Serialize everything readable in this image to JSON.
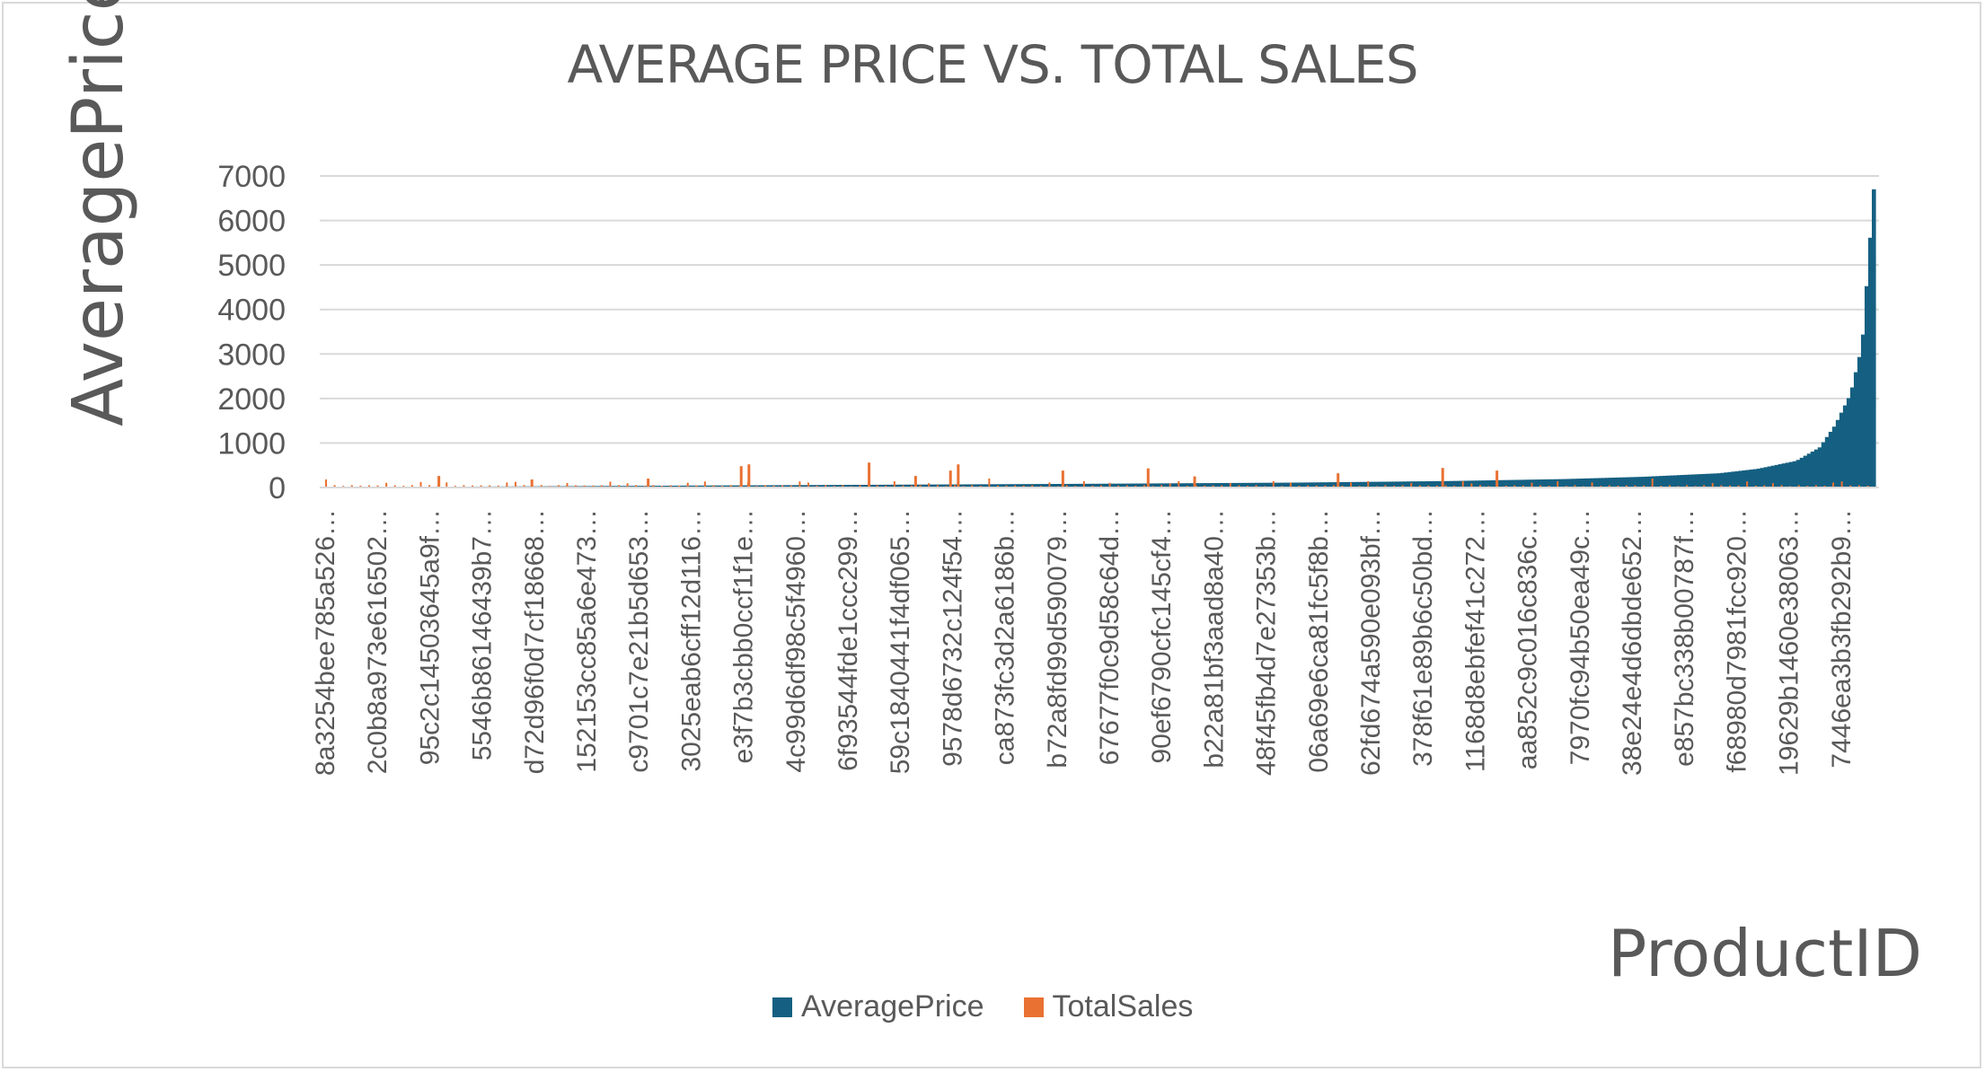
{
  "chart_data": {
    "type": "bar",
    "title": "AVERAGE PRICE VS. TOTAL SALES",
    "xlabel": "ProductID",
    "ylabel": "AveragePrice",
    "ylim": [
      0,
      7000
    ],
    "y_ticks": [
      0,
      1000,
      2000,
      3000,
      4000,
      5000,
      6000,
      7000
    ],
    "grid": true,
    "legend_position": "bottom",
    "x_tick_labels": [
      "8a3254bee785a526…",
      "2c0b8a973e616502…",
      "95c2c14503645a9f…",
      "5546b86146439b7…",
      "d72d96f0d7cf18668…",
      "152153cc85a6e473…",
      "c9701c7e21b5d653…",
      "3025eab6cff12d116…",
      "e3f7b3cbb0ccf1f1e…",
      "4c99d6df98c5f4960…",
      "6f93544fde1ccc299…",
      "59c1840441f4df065…",
      "9578d6732c124f54…",
      "ca873fc3d2a6186b…",
      "b72a8fd99d590079…",
      "67677f0c9d58c64d…",
      "90ef6790cfc145cf4…",
      "b22a81bf3aad8a40…",
      "48f45fb4d7e27353b…",
      "06a69e6ca81fc5f8b…",
      "62fd674a590e093bf…",
      "378f61e89b6c50bd…",
      "1168d8ebfef41c272…",
      "aa852c9c016c836c…",
      "7970fc94b50ea49c…",
      "38e24e4d6dbde652…",
      "e857bc338b00787f…",
      "f68980d7981fcc920…",
      "19629b1460e38063…",
      "7446ea3b3fb292b9…"
    ],
    "series": [
      {
        "name": "AveragePrice",
        "color": "#156082",
        "values_description_points": [
          [
            0,
            10
          ],
          [
            5,
            25
          ],
          [
            10,
            45
          ],
          [
            15,
            65
          ],
          [
            20,
            85
          ],
          [
            25,
            110
          ],
          [
            29,
            145
          ],
          [
            32,
            190
          ],
          [
            34,
            240
          ],
          [
            36,
            320
          ],
          [
            37,
            420
          ],
          [
            38,
            600
          ],
          [
            38.6,
            900
          ],
          [
            39,
            1400
          ],
          [
            39.4,
            2100
          ],
          [
            39.7,
            3200
          ],
          [
            40,
            6700
          ]
        ]
      },
      {
        "name": "TotalSales",
        "color": "#E97132",
        "spikes": [
          [
            2.9,
            260
          ],
          [
            5.3,
            180
          ],
          [
            10.7,
            480
          ],
          [
            10.9,
            520
          ],
          [
            14.0,
            560
          ],
          [
            16.3,
            520
          ],
          [
            16.1,
            380
          ],
          [
            19.0,
            380
          ],
          [
            21.2,
            430
          ],
          [
            22.4,
            250
          ],
          [
            26.1,
            320
          ],
          [
            28.8,
            440
          ],
          [
            30.2,
            380
          ],
          [
            15.2,
            260
          ],
          [
            8.3,
            200
          ]
        ]
      }
    ]
  }
}
